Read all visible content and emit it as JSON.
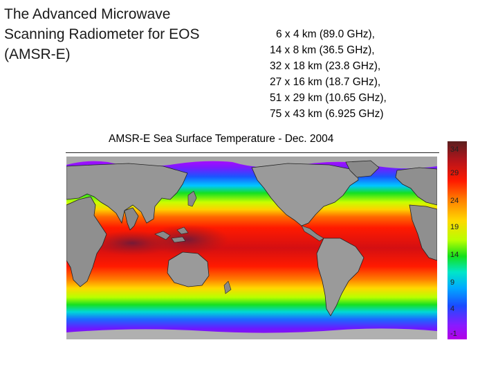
{
  "title": {
    "lines": [
      "The Advanced Microwave",
      "Scanning Radiometer for EOS",
      "(AMSR-E)"
    ]
  },
  "resolutions": [
    " 6 x 4 km (89.0 GHz),",
    "14 x 8 km (36.5 GHz),",
    "32 x 18 km (23.8 GHz),",
    "27 x 16 km (18.7 GHz),",
    "51 x 29 km (10.65 GHz),",
    "75 x 43 km (6.925 GHz)"
  ],
  "map": {
    "caption": "AMSR-E  Sea Surface Temperature - Dec. 2004"
  },
  "colorbar": {
    "ticks": [
      "34",
      "29",
      "24",
      "19",
      "14",
      "9",
      "4",
      "-1"
    ]
  }
}
